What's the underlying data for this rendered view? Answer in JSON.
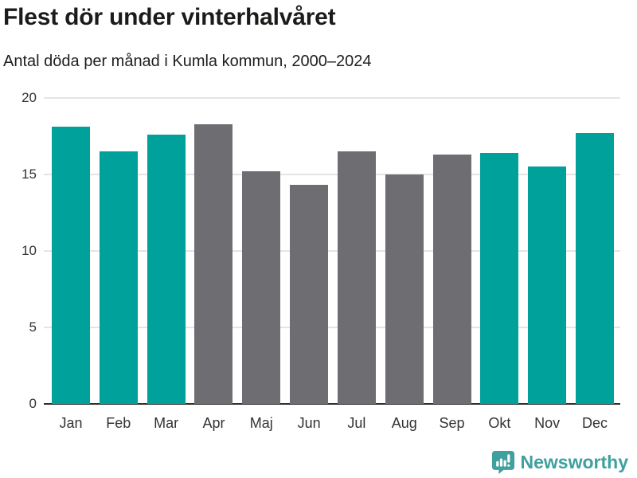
{
  "header": {
    "title": "Flest dör under vinterhalvåret",
    "subtitle": "Antal döda per månad i Kumla kommun, 2000–2024"
  },
  "chart_data": {
    "type": "bar",
    "title": "Flest dör under vinterhalvåret",
    "subtitle": "Antal döda per månad i Kumla kommun, 2000–2024",
    "categories": [
      "Jan",
      "Feb",
      "Mar",
      "Apr",
      "Maj",
      "Jun",
      "Jul",
      "Aug",
      "Sep",
      "Okt",
      "Nov",
      "Dec"
    ],
    "values": [
      18.1,
      16.5,
      17.6,
      18.3,
      15.2,
      14.3,
      16.5,
      15.0,
      16.3,
      16.4,
      15.5,
      17.7
    ],
    "highlighted_winter_months": [
      true,
      true,
      true,
      false,
      false,
      false,
      false,
      false,
      false,
      true,
      true,
      true
    ],
    "highlight_color": "#00A19A",
    "base_color": "#6D6D72",
    "xlabel": "",
    "ylabel": "",
    "ylim": [
      0,
      20
    ],
    "yticks": [
      0,
      5,
      10,
      15,
      20
    ],
    "grid": true,
    "legend": "none",
    "gridline_color": "#E4E4E4",
    "axis_color": "#2E2E2E",
    "tick_label_color": "#333333",
    "title_color": "#1B1B19"
  },
  "footer": {
    "brand": "Newsworthy",
    "brand_color": "#3FA09D",
    "logo_icon": "newsworthy-logo-icon"
  }
}
